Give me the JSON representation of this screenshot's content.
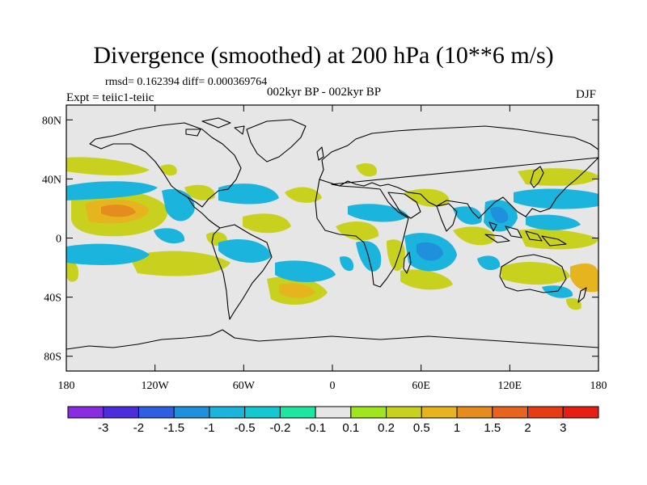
{
  "title": "Divergence (smoothed) at 200 hPa (10**6 m/s)",
  "stats_text": "rmsd= 0.162394 diff= 0.000369764",
  "period_text": "002kyr BP - 002kyr BP",
  "experiment_text": "Expt = teiic1-teiic",
  "season": "DJF",
  "map": {
    "projection": "cylindrical equidistant",
    "lon_range": [
      -180,
      180
    ],
    "lat_range": [
      -90,
      90
    ],
    "lat_ticks": [
      {
        "value": 80,
        "label": "80N"
      },
      {
        "value": 40,
        "label": "40N"
      },
      {
        "value": 0,
        "label": "0"
      },
      {
        "value": -40,
        "label": "40S"
      },
      {
        "value": -80,
        "label": "80S"
      }
    ],
    "lon_ticks": [
      {
        "value": -180,
        "label": "180"
      },
      {
        "value": -120,
        "label": "120W"
      },
      {
        "value": -60,
        "label": "60W"
      },
      {
        "value": 0,
        "label": "0"
      },
      {
        "value": 60,
        "label": "60E"
      },
      {
        "value": 120,
        "label": "120E"
      },
      {
        "value": 180,
        "label": "180"
      }
    ],
    "background_color": "#e6e6e6",
    "coastline_color": "#000000"
  },
  "colorbar": {
    "labels": [
      "-3",
      "-2",
      "-1.5",
      "-1",
      "-0.5",
      "-0.2",
      "-0.1",
      "0.1",
      "0.2",
      "0.5",
      "1",
      "1.5",
      "2",
      "3"
    ],
    "colors": [
      "#8a2be2",
      "#4b2ddb",
      "#2e5fe0",
      "#1e90dc",
      "#1ab4dc",
      "#14c8d2",
      "#1ee6a0",
      "#e6e6e6",
      "#a0e61e",
      "#c8d21e",
      "#e6b41e",
      "#e68c1e",
      "#e6641e",
      "#e63c14",
      "#e61e14"
    ]
  }
}
